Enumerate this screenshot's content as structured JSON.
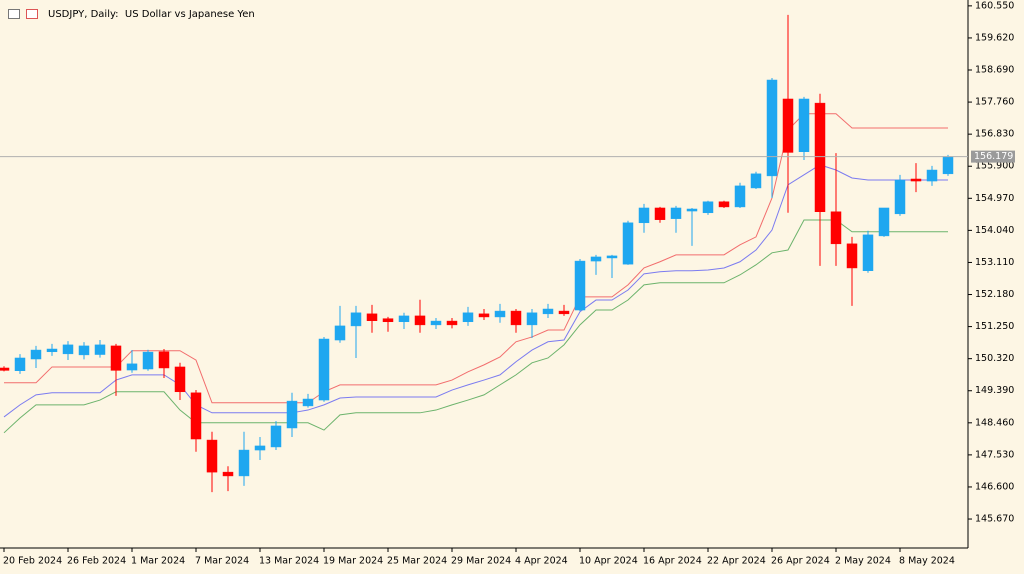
{
  "chart_data": {
    "type": "candlestick",
    "title": "USDJPY, Daily:  US Dollar vs Japanese Yen",
    "categories": [
      "20 Feb 2024",
      null,
      null,
      null,
      "26 Feb 2024",
      null,
      null,
      null,
      "1 Mar 2024",
      null,
      null,
      null,
      "7 Mar 2024",
      null,
      null,
      null,
      "13 Mar 2024",
      null,
      null,
      null,
      "19 Mar 2024",
      null,
      null,
      null,
      "25 Mar 2024",
      null,
      null,
      null,
      "29 Mar 2024",
      null,
      null,
      null,
      "4 Apr 2024",
      null,
      null,
      null,
      "10 Apr 2024",
      null,
      null,
      null,
      "16 Apr 2024",
      null,
      null,
      null,
      "22 Apr 2024",
      null,
      null,
      null,
      "26 Apr 2024",
      null,
      null,
      null,
      "2 May 2024",
      null,
      null,
      null,
      "8 May 2024",
      null,
      null,
      null
    ],
    "open": [
      150.05,
      149.97,
      150.31,
      150.52,
      150.46,
      150.43,
      150.44,
      150.69,
      149.99,
      150.02,
      150.52,
      150.08,
      149.33,
      147.96,
      147.03,
      146.92,
      147.67,
      147.76,
      148.31,
      148.95,
      149.12,
      150.86,
      151.27,
      151.62,
      151.48,
      151.39,
      151.56,
      151.3,
      151.41,
      151.39,
      151.62,
      151.53,
      151.7,
      151.3,
      151.62,
      151.7,
      151.73,
      153.15,
      153.24,
      153.06,
      154.26,
      154.69,
      154.38,
      154.6,
      154.55,
      154.87,
      154.72,
      155.27,
      155.62,
      157.85,
      156.32,
      157.73,
      154.58,
      153.65,
      152.87,
      153.88,
      154.52,
      155.53,
      155.47,
      155.68
    ],
    "high": [
      150.1,
      150.45,
      150.69,
      150.75,
      150.83,
      150.8,
      150.86,
      150.75,
      150.57,
      150.58,
      150.6,
      150.2,
      149.41,
      148.2,
      147.2,
      148.2,
      148.05,
      148.51,
      149.33,
      149.3,
      150.95,
      151.85,
      151.85,
      151.88,
      151.53,
      151.65,
      152.03,
      151.5,
      151.5,
      151.82,
      151.76,
      151.91,
      151.76,
      151.76,
      151.91,
      151.88,
      153.21,
      153.33,
      153.33,
      154.32,
      154.81,
      154.72,
      154.75,
      154.69,
      154.9,
      154.9,
      155.42,
      155.74,
      158.46,
      160.29,
      157.91,
      158.0,
      156.28,
      153.85,
      154.03,
      154.69,
      155.65,
      155.99,
      155.91,
      156.23
    ],
    "low": [
      149.95,
      149.88,
      150.05,
      150.4,
      150.28,
      150.3,
      150.35,
      149.24,
      149.91,
      149.97,
      149.76,
      149.12,
      147.62,
      146.45,
      146.48,
      146.63,
      147.38,
      147.67,
      148.05,
      148.9,
      149.07,
      150.78,
      150.34,
      151.07,
      151.1,
      151.18,
      151.07,
      151.18,
      151.2,
      151.27,
      151.44,
      151.36,
      151.07,
      150.92,
      151.5,
      151.56,
      151.7,
      152.75,
      152.66,
      153.04,
      153.97,
      154.26,
      153.97,
      153.59,
      154.49,
      154.69,
      154.69,
      155.24,
      154.98,
      154.55,
      156.08,
      153.01,
      153.01,
      151.85,
      152.81,
      153.85,
      154.46,
      155.15,
      155.33,
      155.62
    ],
    "close": [
      149.98,
      150.34,
      150.57,
      150.6,
      150.72,
      150.69,
      150.72,
      149.98,
      150.17,
      150.51,
      150.05,
      149.36,
      147.99,
      147.03,
      146.92,
      147.67,
      147.79,
      148.37,
      149.09,
      149.15,
      150.89,
      151.27,
      151.65,
      151.42,
      151.39,
      151.56,
      151.3,
      151.41,
      151.3,
      151.65,
      151.53,
      151.7,
      151.3,
      151.65,
      151.76,
      151.62,
      153.15,
      153.27,
      153.3,
      154.26,
      154.69,
      154.35,
      154.69,
      154.66,
      154.87,
      154.72,
      155.33,
      155.68,
      158.4,
      156.3,
      157.85,
      154.58,
      153.65,
      152.95,
      153.91,
      154.69,
      155.5,
      155.47,
      155.79,
      156.18
    ],
    "up_color": "#1ea7f0",
    "down_color": "#ff0000",
    "overlays": [
      {
        "color": "#f26d6d",
        "values": [
          149.62,
          149.62,
          149.62,
          150.08,
          150.08,
          150.08,
          150.08,
          150.08,
          150.55,
          150.55,
          150.55,
          150.55,
          150.28,
          149.04,
          149.04,
          149.04,
          149.04,
          149.04,
          149.04,
          149.04,
          149.36,
          149.56,
          149.56,
          149.56,
          149.56,
          149.56,
          149.56,
          149.56,
          149.7,
          149.94,
          150.14,
          150.37,
          150.81,
          150.95,
          151.15,
          151.15,
          152.11,
          152.11,
          152.11,
          152.46,
          152.95,
          153.13,
          153.33,
          153.33,
          153.33,
          153.33,
          153.62,
          153.85,
          154.98,
          156.95,
          157.42,
          157.42,
          157.42,
          157.01,
          157.01,
          157.01,
          157.01,
          157.01,
          157.01,
          157.01
        ]
      },
      {
        "color": "#7b7bf0",
        "values": [
          148.63,
          148.98,
          149.27,
          149.33,
          149.33,
          149.33,
          149.33,
          149.7,
          149.85,
          149.85,
          149.85,
          149.56,
          148.98,
          148.75,
          148.75,
          148.75,
          148.75,
          148.75,
          148.75,
          148.83,
          148.98,
          149.18,
          149.21,
          149.21,
          149.21,
          149.21,
          149.21,
          149.21,
          149.41,
          149.56,
          149.7,
          149.85,
          150.23,
          150.57,
          150.81,
          150.86,
          151.68,
          152.02,
          152.02,
          152.31,
          152.78,
          152.84,
          152.87,
          152.87,
          152.89,
          152.95,
          153.13,
          153.47,
          154.05,
          155.36,
          155.65,
          155.94,
          155.79,
          155.56,
          155.5,
          155.5,
          155.5,
          155.5,
          155.5,
          155.5
        ]
      },
      {
        "color": "#6cb36c",
        "values": [
          148.17,
          148.6,
          148.98,
          148.98,
          148.98,
          148.98,
          149.12,
          149.36,
          149.36,
          149.36,
          149.36,
          148.83,
          148.46,
          148.46,
          148.46,
          148.46,
          148.46,
          148.46,
          148.46,
          148.46,
          148.25,
          148.69,
          148.75,
          148.75,
          148.75,
          148.75,
          148.75,
          148.83,
          148.98,
          149.12,
          149.27,
          149.56,
          149.85,
          150.2,
          150.34,
          150.72,
          151.3,
          151.73,
          151.73,
          152.02,
          152.46,
          152.52,
          152.52,
          152.52,
          152.52,
          152.52,
          152.75,
          153.04,
          153.39,
          153.47,
          154.34,
          154.34,
          154.34,
          154.0,
          154.0,
          154.0,
          154.0,
          154.0,
          154.0,
          154.0
        ]
      }
    ],
    "last_price": 156.179,
    "ylim": [
      144.83,
      160.72
    ],
    "yticks": [
      {
        "value": 160.55,
        "label": "160.550"
      },
      {
        "value": 159.62,
        "label": "159.620"
      },
      {
        "value": 158.69,
        "label": "158.690"
      },
      {
        "value": 157.76,
        "label": "157.760"
      },
      {
        "value": 156.83,
        "label": "156.830"
      },
      {
        "value": 155.9,
        "label": "155.900"
      },
      {
        "value": 154.97,
        "label": "154.970"
      },
      {
        "value": 154.04,
        "label": "154.040"
      },
      {
        "value": 153.11,
        "label": "153.110"
      },
      {
        "value": 152.18,
        "label": "152.180"
      },
      {
        "value": 151.25,
        "label": "151.250"
      },
      {
        "value": 150.32,
        "label": "150.320"
      },
      {
        "value": 149.39,
        "label": "149.390"
      },
      {
        "value": 148.46,
        "label": "148.460"
      },
      {
        "value": 147.53,
        "label": "147.530"
      },
      {
        "value": 146.6,
        "label": "146.600"
      },
      {
        "value": 145.67,
        "label": "145.670"
      }
    ],
    "grid": false
  }
}
